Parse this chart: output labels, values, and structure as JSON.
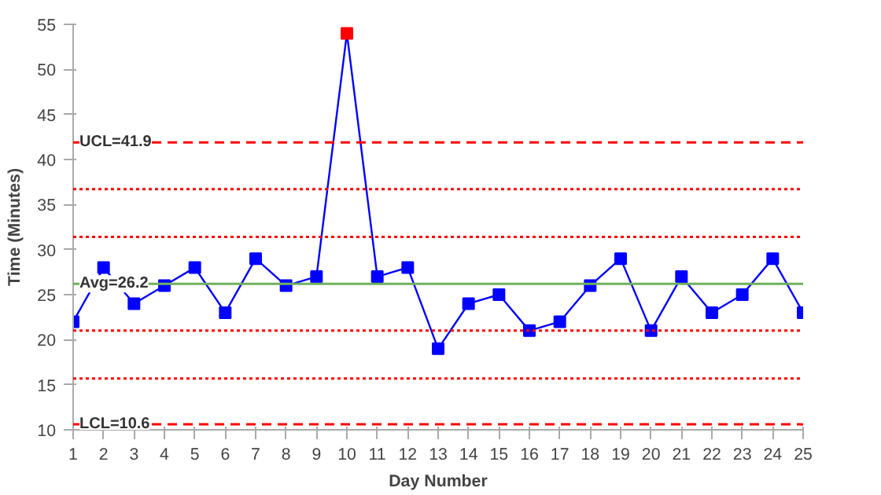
{
  "chart_data": {
    "type": "line",
    "xlabel": "Day Number",
    "ylabel": "Time (Minutes)",
    "x": [
      1,
      2,
      3,
      4,
      5,
      6,
      7,
      8,
      9,
      10,
      11,
      12,
      13,
      14,
      15,
      16,
      17,
      18,
      19,
      20,
      21,
      22,
      23,
      24,
      25
    ],
    "series": [
      {
        "color": "#0000ff",
        "values": [
          22,
          28,
          24,
          26,
          28,
          23,
          29,
          26,
          27,
          54,
          27,
          28,
          19,
          24,
          25,
          21,
          22,
          26,
          29,
          21,
          27,
          23,
          25,
          29,
          23
        ],
        "colors": [
          "#0000ff",
          "#0000ff",
          "#0000ff",
          "#0000ff",
          "#0000ff",
          "#0000ff",
          "#0000ff",
          "#0000ff",
          "#0000ff",
          "#ff0000",
          "#0000ff",
          "#0000ff",
          "#0000ff",
          "#0000ff",
          "#0000ff",
          "#0000ff",
          "#0000ff",
          "#0000ff",
          "#0000ff",
          "#0000ff",
          "#0000ff",
          "#0000ff",
          "#0000ff",
          "#0000ff",
          "#0000ff"
        ]
      }
    ],
    "xlim": [
      1,
      25
    ],
    "xticks": [
      1,
      2,
      3,
      4,
      5,
      6,
      7,
      8,
      9,
      10,
      11,
      12,
      13,
      14,
      15,
      16,
      17,
      18,
      19,
      20,
      21,
      22,
      23,
      24,
      25
    ],
    "ylim": [
      10,
      55
    ],
    "yticks": [
      10,
      15,
      20,
      25,
      30,
      35,
      40,
      45,
      50,
      55
    ],
    "ref_lines": [
      {
        "axis": "y",
        "value": 41.9,
        "label": "UCL=41.9",
        "color": "#ff0000",
        "line_style": "dashed"
      },
      {
        "axis": "y",
        "value": 36.7,
        "color": "#ff0000",
        "line_style": "dotted"
      },
      {
        "axis": "y",
        "value": 31.4,
        "color": "#ff0000",
        "line_style": "dotted"
      },
      {
        "axis": "y",
        "value": 26.2,
        "label": "Avg=26.2",
        "color": "#70b060",
        "line_style": "solid"
      },
      {
        "axis": "y",
        "value": 21.0,
        "color": "#ff0000",
        "line_style": "dotted"
      },
      {
        "axis": "y",
        "value": 15.7,
        "color": "#ff0000",
        "line_style": "dotted"
      },
      {
        "axis": "y",
        "value": 10.6,
        "label": "LCL=10.6",
        "color": "#ff0000",
        "line_style": "dashed"
      }
    ],
    "grid": false,
    "marker": "square",
    "line_style": "solid"
  }
}
